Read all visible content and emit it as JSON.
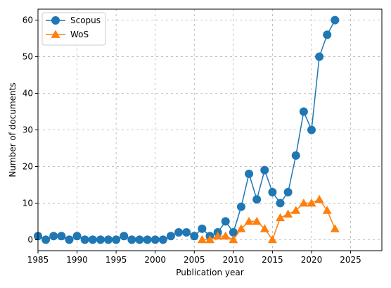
{
  "chart_data": {
    "type": "line",
    "title": "",
    "xlabel": "Publication year",
    "ylabel": "Number of documents",
    "xlim": [
      1985,
      2029
    ],
    "ylim": [
      -3,
      63
    ],
    "xticks": [
      1985,
      1990,
      1995,
      2000,
      2005,
      2010,
      2015,
      2020,
      2025
    ],
    "yticks": [
      0,
      10,
      20,
      30,
      40,
      50,
      60
    ],
    "grid": true,
    "legend_position": "top-left",
    "series": [
      {
        "name": "Scopus",
        "color": "#1f77b4",
        "marker": "circle",
        "points": [
          [
            1985,
            1
          ],
          [
            1986,
            0
          ],
          [
            1987,
            1
          ],
          [
            1988,
            1
          ],
          [
            1989,
            0
          ],
          [
            1990,
            1
          ],
          [
            1991,
            0
          ],
          [
            1992,
            0
          ],
          [
            1993,
            0
          ],
          [
            1994,
            0
          ],
          [
            1995,
            0
          ],
          [
            1996,
            1
          ],
          [
            1997,
            0
          ],
          [
            1998,
            0
          ],
          [
            1999,
            0
          ],
          [
            2000,
            0
          ],
          [
            2001,
            0
          ],
          [
            2002,
            1
          ],
          [
            2003,
            2
          ],
          [
            2004,
            2
          ],
          [
            2005,
            1
          ],
          [
            2006,
            3
          ],
          [
            2007,
            1
          ],
          [
            2008,
            2
          ],
          [
            2009,
            5
          ],
          [
            2010,
            2
          ],
          [
            2011,
            9
          ],
          [
            2012,
            18
          ],
          [
            2013,
            11
          ],
          [
            2014,
            19
          ],
          [
            2015,
            13
          ],
          [
            2016,
            10
          ],
          [
            2017,
            13
          ],
          [
            2018,
            23
          ],
          [
            2019,
            35
          ],
          [
            2020,
            30
          ],
          [
            2021,
            50
          ],
          [
            2022,
            56
          ],
          [
            2023,
            60
          ]
        ]
      },
      {
        "name": "WoS",
        "color": "#ff7f0e",
        "marker": "triangle",
        "points": [
          [
            2006,
            0
          ],
          [
            2007,
            0
          ],
          [
            2008,
            1
          ],
          [
            2009,
            1
          ],
          [
            2010,
            0
          ],
          [
            2011,
            3
          ],
          [
            2012,
            5
          ],
          [
            2013,
            5
          ],
          [
            2014,
            3
          ],
          [
            2015,
            0
          ],
          [
            2016,
            6
          ],
          [
            2017,
            7
          ],
          [
            2018,
            8
          ],
          [
            2019,
            10
          ],
          [
            2020,
            10
          ],
          [
            2021,
            11
          ],
          [
            2022,
            8
          ],
          [
            2023,
            3
          ]
        ]
      }
    ]
  }
}
